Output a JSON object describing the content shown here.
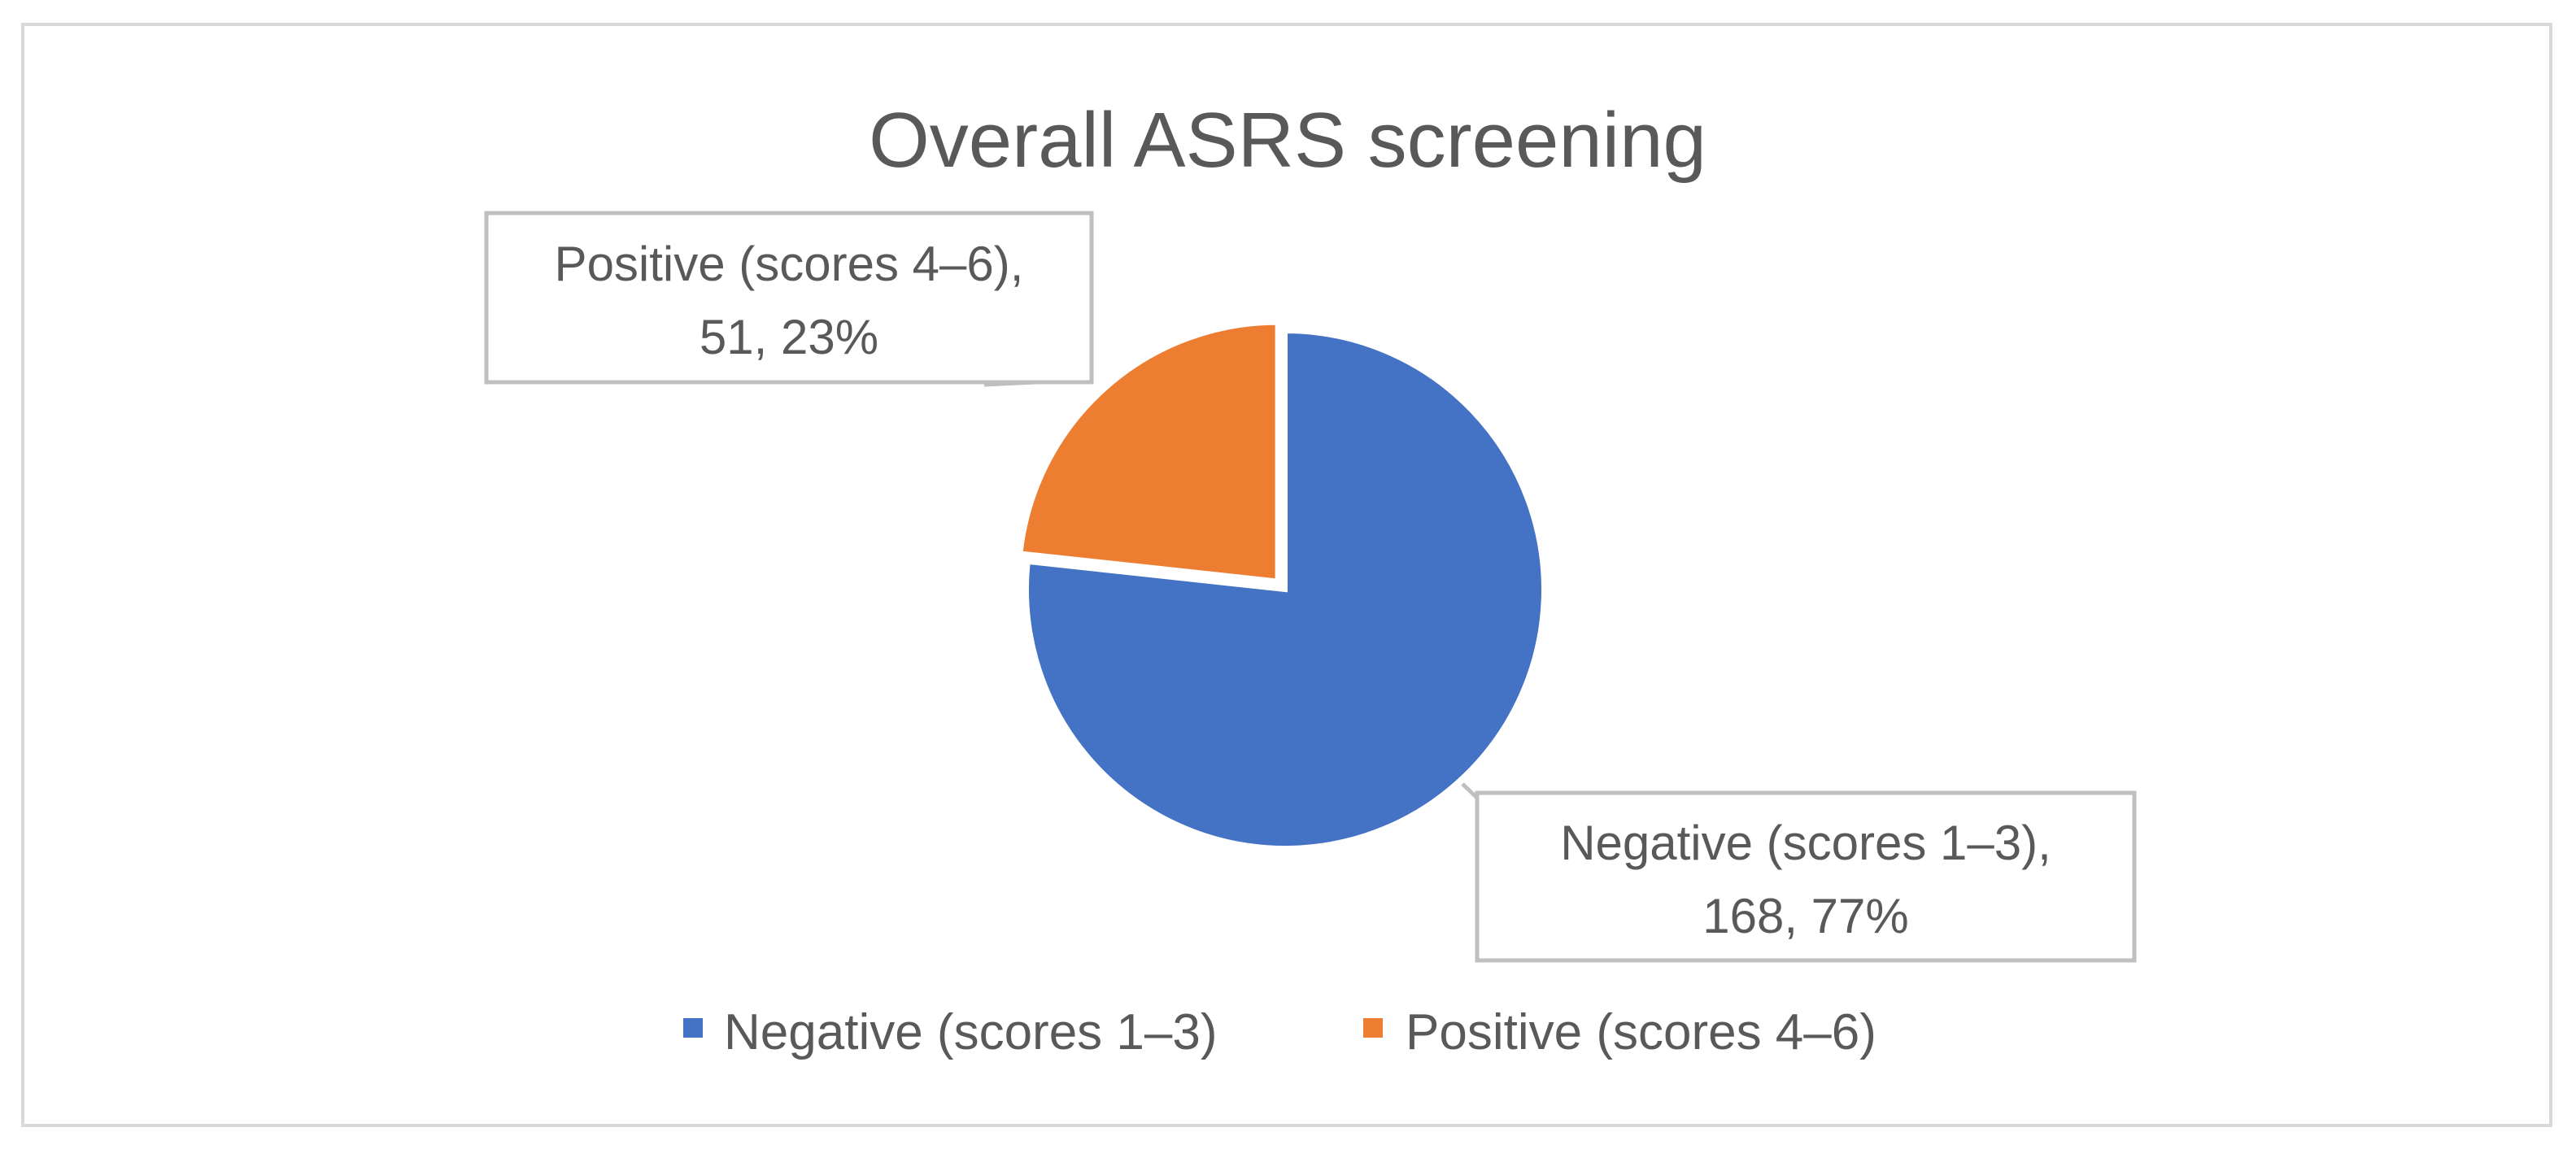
{
  "chart_data": {
    "type": "pie",
    "title": "Overall ASRS screening",
    "slices": [
      {
        "name": "Negative (scores 1–3)",
        "value": 168,
        "percent": "77%",
        "color": "#4472c4",
        "label_line1": "Negative (scores 1–3),",
        "label_line2": "168, 77%"
      },
      {
        "name": "Positive (scores 4–6)",
        "value": 51,
        "percent": "23%",
        "color": "#ed7d31",
        "label_line1": "Positive (scores 4–6),",
        "label_line2": "51, 23%"
      }
    ],
    "legend_placement": "bottom"
  }
}
